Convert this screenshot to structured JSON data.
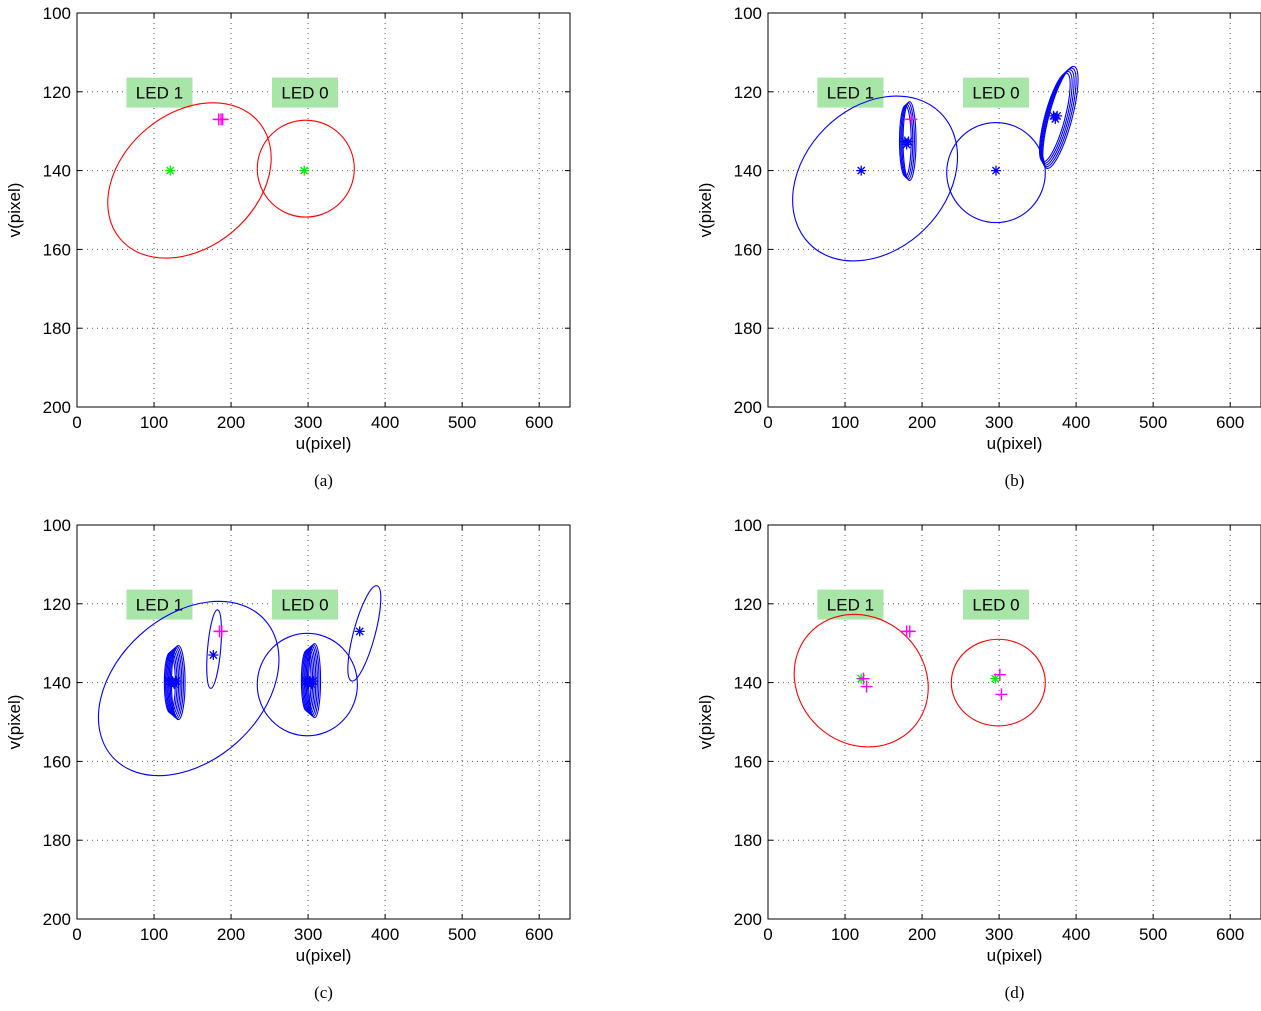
{
  "figure": {
    "axes": {
      "xlabel": "u(pixel)",
      "ylabel": "v(pixel)",
      "xlim": [
        0,
        640
      ],
      "ylim": [
        100,
        200
      ],
      "y_reversed": true,
      "xticks": [
        0,
        100,
        200,
        300,
        400,
        500,
        600
      ],
      "yticks": [
        100,
        120,
        140,
        160,
        180,
        200
      ],
      "grid": "dotted"
    },
    "colors": {
      "red": "#ff0000",
      "blue": "#0000ff",
      "green": "#00ee00",
      "magenta": "#ff00ff",
      "label_bg": "#a8e6a8"
    }
  },
  "chart_data": [
    {
      "type": "scatter",
      "caption": "(a)",
      "labels": [
        {
          "text": "LED 1",
          "x": 107,
          "y": 120.2
        },
        {
          "text": "LED 0",
          "x": 296,
          "y": 120.2
        }
      ],
      "ellipses": [
        {
          "cx": 146,
          "cy": 142.5,
          "rx": 87,
          "ry": 23,
          "angle": 50,
          "color": "red"
        },
        {
          "cx": 297,
          "cy": 139.5,
          "rx": 63,
          "ry": 12.3,
          "angle": 0,
          "color": "red"
        }
      ],
      "markers": [
        {
          "x": 121,
          "y": 140,
          "symbol": "star",
          "color": "green"
        },
        {
          "x": 295,
          "y": 140,
          "symbol": "star",
          "color": "green"
        },
        {
          "x": 184,
          "y": 127,
          "symbol": "plus",
          "color": "magenta"
        },
        {
          "x": 187,
          "y": 127,
          "symbol": "plus",
          "color": "magenta"
        },
        {
          "x": 189,
          "y": 127,
          "symbol": "plus",
          "color": "magenta"
        }
      ]
    },
    {
      "type": "scatter",
      "caption": "(b)",
      "labels": [
        {
          "text": "LED 1",
          "x": 107,
          "y": 120.2
        },
        {
          "text": "LED 0",
          "x": 296,
          "y": 120.2
        }
      ],
      "ellipses": [
        {
          "cx": 139,
          "cy": 142,
          "rx": 92,
          "ry": 23.5,
          "angle": 45,
          "color": "blue"
        },
        {
          "cx": 296,
          "cy": 140.5,
          "rx": 64,
          "ry": 12.7,
          "angle": 0,
          "color": "blue"
        },
        {
          "cx": 181,
          "cy": 132.5,
          "rx": 8,
          "ry": 9.5,
          "angle": 0,
          "color": "blue",
          "repeat": 4
        },
        {
          "cx": 376,
          "cy": 126.5,
          "rx": 14,
          "ry": 12.5,
          "angle": 15,
          "color": "blue",
          "repeat": 5
        }
      ],
      "markers": [
        {
          "x": 121,
          "y": 140,
          "symbol": "star",
          "color": "blue"
        },
        {
          "x": 296,
          "y": 140,
          "symbol": "star",
          "color": "blue"
        },
        {
          "x": 180,
          "y": 133,
          "symbol": "star",
          "color": "blue",
          "repeat": 3
        },
        {
          "x": 373,
          "y": 126.5,
          "symbol": "star",
          "color": "blue",
          "repeat": 3
        },
        {
          "x": 186,
          "y": 127,
          "symbol": "plus",
          "color": "magenta"
        }
      ]
    },
    {
      "type": "scatter",
      "caption": "(c)",
      "labels": [
        {
          "text": "LED 1",
          "x": 107,
          "y": 120.2
        },
        {
          "text": "LED 0",
          "x": 296,
          "y": 120.2
        }
      ],
      "ellipses": [
        {
          "cx": 145,
          "cy": 141.5,
          "rx": 94,
          "ry": 26,
          "angle": 48,
          "color": "blue"
        },
        {
          "cx": 299,
          "cy": 140.5,
          "rx": 65,
          "ry": 13,
          "angle": 0,
          "color": "blue"
        },
        {
          "cx": 178,
          "cy": 131.5,
          "rx": 8.5,
          "ry": 10,
          "angle": 5,
          "color": "blue"
        },
        {
          "cx": 373,
          "cy": 127.5,
          "rx": 14,
          "ry": 12.5,
          "angle": 15,
          "color": "blue"
        },
        {
          "cx": 126,
          "cy": 140,
          "rx": 8,
          "ry": 8.5,
          "angle": 0,
          "color": "blue",
          "repeat": 7
        },
        {
          "cx": 303,
          "cy": 139.5,
          "rx": 7,
          "ry": 8.5,
          "angle": 0,
          "color": "blue",
          "repeat": 7
        }
      ],
      "markers": [
        {
          "x": 124,
          "y": 140,
          "symbol": "star",
          "color": "blue",
          "repeat": 5
        },
        {
          "x": 302,
          "y": 140,
          "symbol": "star",
          "color": "blue",
          "repeat": 5
        },
        {
          "x": 177,
          "y": 133,
          "symbol": "star",
          "color": "blue"
        },
        {
          "x": 367,
          "y": 127,
          "symbol": "star",
          "color": "blue"
        },
        {
          "x": 185,
          "y": 127,
          "symbol": "plus",
          "color": "magenta"
        },
        {
          "x": 188,
          "y": 127,
          "symbol": "plus",
          "color": "magenta"
        }
      ]
    },
    {
      "type": "scatter",
      "caption": "(d)",
      "labels": [
        {
          "text": "LED 1",
          "x": 107,
          "y": 120.2
        },
        {
          "text": "LED 0",
          "x": 296,
          "y": 120.2
        }
      ],
      "ellipses": [
        {
          "cx": 121,
          "cy": 139.5,
          "rx": 91,
          "ry": 16,
          "angle": 42,
          "color": "red"
        },
        {
          "cx": 299,
          "cy": 140,
          "rx": 61,
          "ry": 11,
          "angle": 0,
          "color": "red"
        }
      ],
      "markers": [
        {
          "x": 121,
          "y": 139,
          "symbol": "star",
          "color": "green"
        },
        {
          "x": 295,
          "y": 139,
          "symbol": "star",
          "color": "green"
        },
        {
          "x": 180,
          "y": 127,
          "symbol": "plus",
          "color": "magenta"
        },
        {
          "x": 184,
          "y": 127,
          "symbol": "plus",
          "color": "magenta"
        },
        {
          "x": 124,
          "y": 139,
          "symbol": "plus",
          "color": "magenta"
        },
        {
          "x": 128,
          "y": 141,
          "symbol": "plus",
          "color": "magenta"
        },
        {
          "x": 301,
          "y": 138,
          "symbol": "plus",
          "color": "magenta"
        },
        {
          "x": 303,
          "y": 143,
          "symbol": "plus",
          "color": "magenta"
        }
      ]
    }
  ]
}
